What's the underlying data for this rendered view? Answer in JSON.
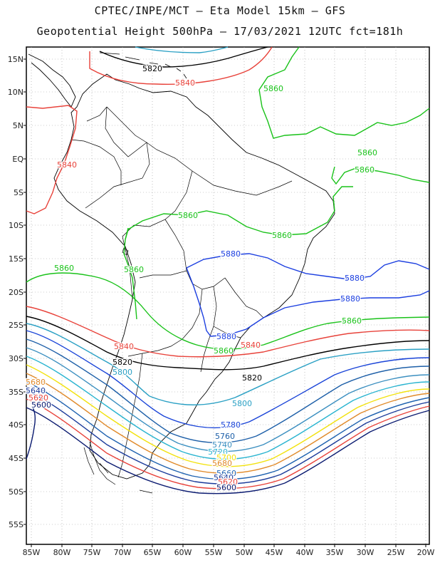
{
  "header": {
    "line1": "CPTEC/INPE/MCT –  Eta Model 15km – GFS",
    "line2": "Geopotential Height 500hPa – 17/03/2021 12UTC fct=181h"
  },
  "axes": {
    "lat_labels": [
      "15N",
      "10N",
      "5N",
      "EQ",
      "5S",
      "10S",
      "15S",
      "20S",
      "25S",
      "30S",
      "35S",
      "40S",
      "45S",
      "50S",
      "55S"
    ],
    "lon_labels": [
      "85W",
      "80W",
      "75W",
      "70W",
      "65W",
      "60W",
      "55W",
      "50W",
      "45W",
      "40W",
      "35W",
      "30W",
      "25W",
      "20W"
    ],
    "grid": "dotted"
  },
  "contours": [
    {
      "value": "5820",
      "color": "#000000"
    },
    {
      "value": "5840",
      "color": "#e8423a"
    },
    {
      "value": "5860",
      "color": "#19c219"
    },
    {
      "value": "5880",
      "color": "#1c3fe0"
    },
    {
      "value": "5800",
      "color": "#2aa0c4"
    },
    {
      "value": "5780",
      "color": "#1a44d8"
    },
    {
      "value": "5760",
      "color": "#1d5fa8"
    },
    {
      "value": "5740",
      "color": "#3b8fc0"
    },
    {
      "value": "5720",
      "color": "#2ab4d0"
    },
    {
      "value": "5700",
      "color": "#f2e20e"
    },
    {
      "value": "5680",
      "color": "#e08a2a"
    },
    {
      "value": "5660",
      "color": "#1f62b0"
    },
    {
      "value": "5640",
      "color": "#1a3a9a"
    },
    {
      "value": "5620",
      "color": "#e8423a"
    },
    {
      "value": "5600",
      "color": "#0a1a70"
    }
  ],
  "contour_labels": [
    {
      "text": "5820"
    },
    {
      "text": "5840"
    },
    {
      "text": "5860"
    },
    {
      "text": "5860"
    },
    {
      "text": "5860"
    },
    {
      "text": "5840"
    },
    {
      "text": "5860"
    },
    {
      "text": "5860"
    },
    {
      "text": "5880"
    },
    {
      "text": "5880"
    },
    {
      "text": "5880"
    },
    {
      "text": "5860"
    },
    {
      "text": "5860"
    },
    {
      "text": "5880"
    },
    {
      "text": "5860"
    },
    {
      "text": "5840"
    },
    {
      "text": "5820"
    },
    {
      "text": "5800"
    },
    {
      "text": "5840"
    },
    {
      "text": "5820"
    },
    {
      "text": "5800"
    },
    {
      "text": "5780"
    },
    {
      "text": "5760"
    },
    {
      "text": "5740"
    },
    {
      "text": "5720"
    },
    {
      "text": "5700"
    },
    {
      "text": "5680"
    },
    {
      "text": "5660"
    },
    {
      "text": "5640"
    },
    {
      "text": "5620"
    },
    {
      "text": "5600"
    },
    {
      "text": "5640"
    },
    {
      "text": "5620"
    },
    {
      "text": "5600"
    },
    {
      "text": "5680"
    },
    {
      "text": "5860"
    }
  ]
}
